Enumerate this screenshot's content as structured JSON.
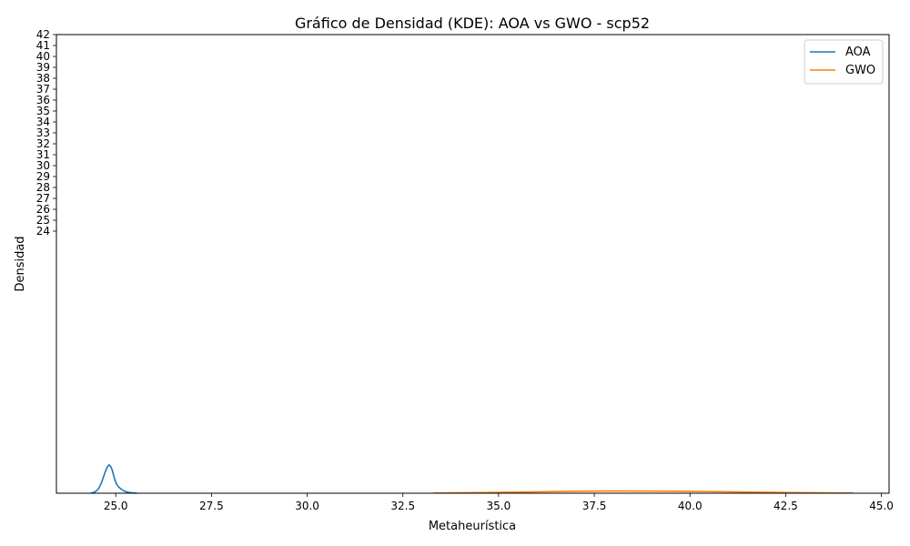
{
  "chart_data": {
    "type": "line",
    "title": "Gráfico de Densidad (KDE): AOA vs GWO - scp52",
    "xlabel": "Metaheurística",
    "ylabel": "Densidad",
    "xlim": [
      23.45,
      45.2
    ],
    "ylim": [
      0,
      42
    ],
    "xticks": [
      25.0,
      27.5,
      30.0,
      32.5,
      35.0,
      37.5,
      40.0,
      42.5,
      45.0
    ],
    "xtick_labels": [
      "25.0",
      "27.5",
      "30.0",
      "32.5",
      "35.0",
      "37.5",
      "40.0",
      "42.5",
      "45.0"
    ],
    "yticks": [
      24,
      25,
      26,
      27,
      28,
      29,
      30,
      31,
      32,
      33,
      34,
      35,
      36,
      37,
      38,
      39,
      40,
      41,
      42
    ],
    "ytick_labels": [
      "24",
      "25",
      "26",
      "27",
      "28",
      "29",
      "30",
      "31",
      "32",
      "33",
      "34",
      "35",
      "36",
      "37",
      "38",
      "39",
      "40",
      "41",
      "42"
    ],
    "legend_position": "top-right",
    "grid": false,
    "series": [
      {
        "name": "AOA",
        "color": "#1f77b4",
        "x": [
          24.35,
          24.45,
          24.55,
          24.62,
          24.68,
          24.73,
          24.78,
          24.82,
          24.86,
          24.9,
          24.94,
          24.98,
          25.02,
          25.08,
          25.15,
          25.25,
          25.35,
          25.45,
          25.55
        ],
        "y": [
          0.0,
          0.1,
          0.4,
          0.9,
          1.5,
          2.0,
          2.4,
          2.6,
          2.5,
          2.2,
          1.7,
          1.2,
          0.85,
          0.55,
          0.35,
          0.15,
          0.07,
          0.03,
          0.0
        ]
      },
      {
        "name": "GWO",
        "color": "#ff7f0e",
        "x": [
          33.3,
          34.0,
          34.8,
          35.5,
          36.3,
          37.0,
          37.7,
          38.4,
          39.2,
          40.0,
          40.8,
          41.6,
          42.4,
          43.2,
          44.0,
          44.25
        ],
        "y": [
          0.02,
          0.04,
          0.07,
          0.1,
          0.14,
          0.18,
          0.2,
          0.2,
          0.19,
          0.17,
          0.14,
          0.1,
          0.07,
          0.04,
          0.02,
          0.02
        ]
      }
    ]
  }
}
